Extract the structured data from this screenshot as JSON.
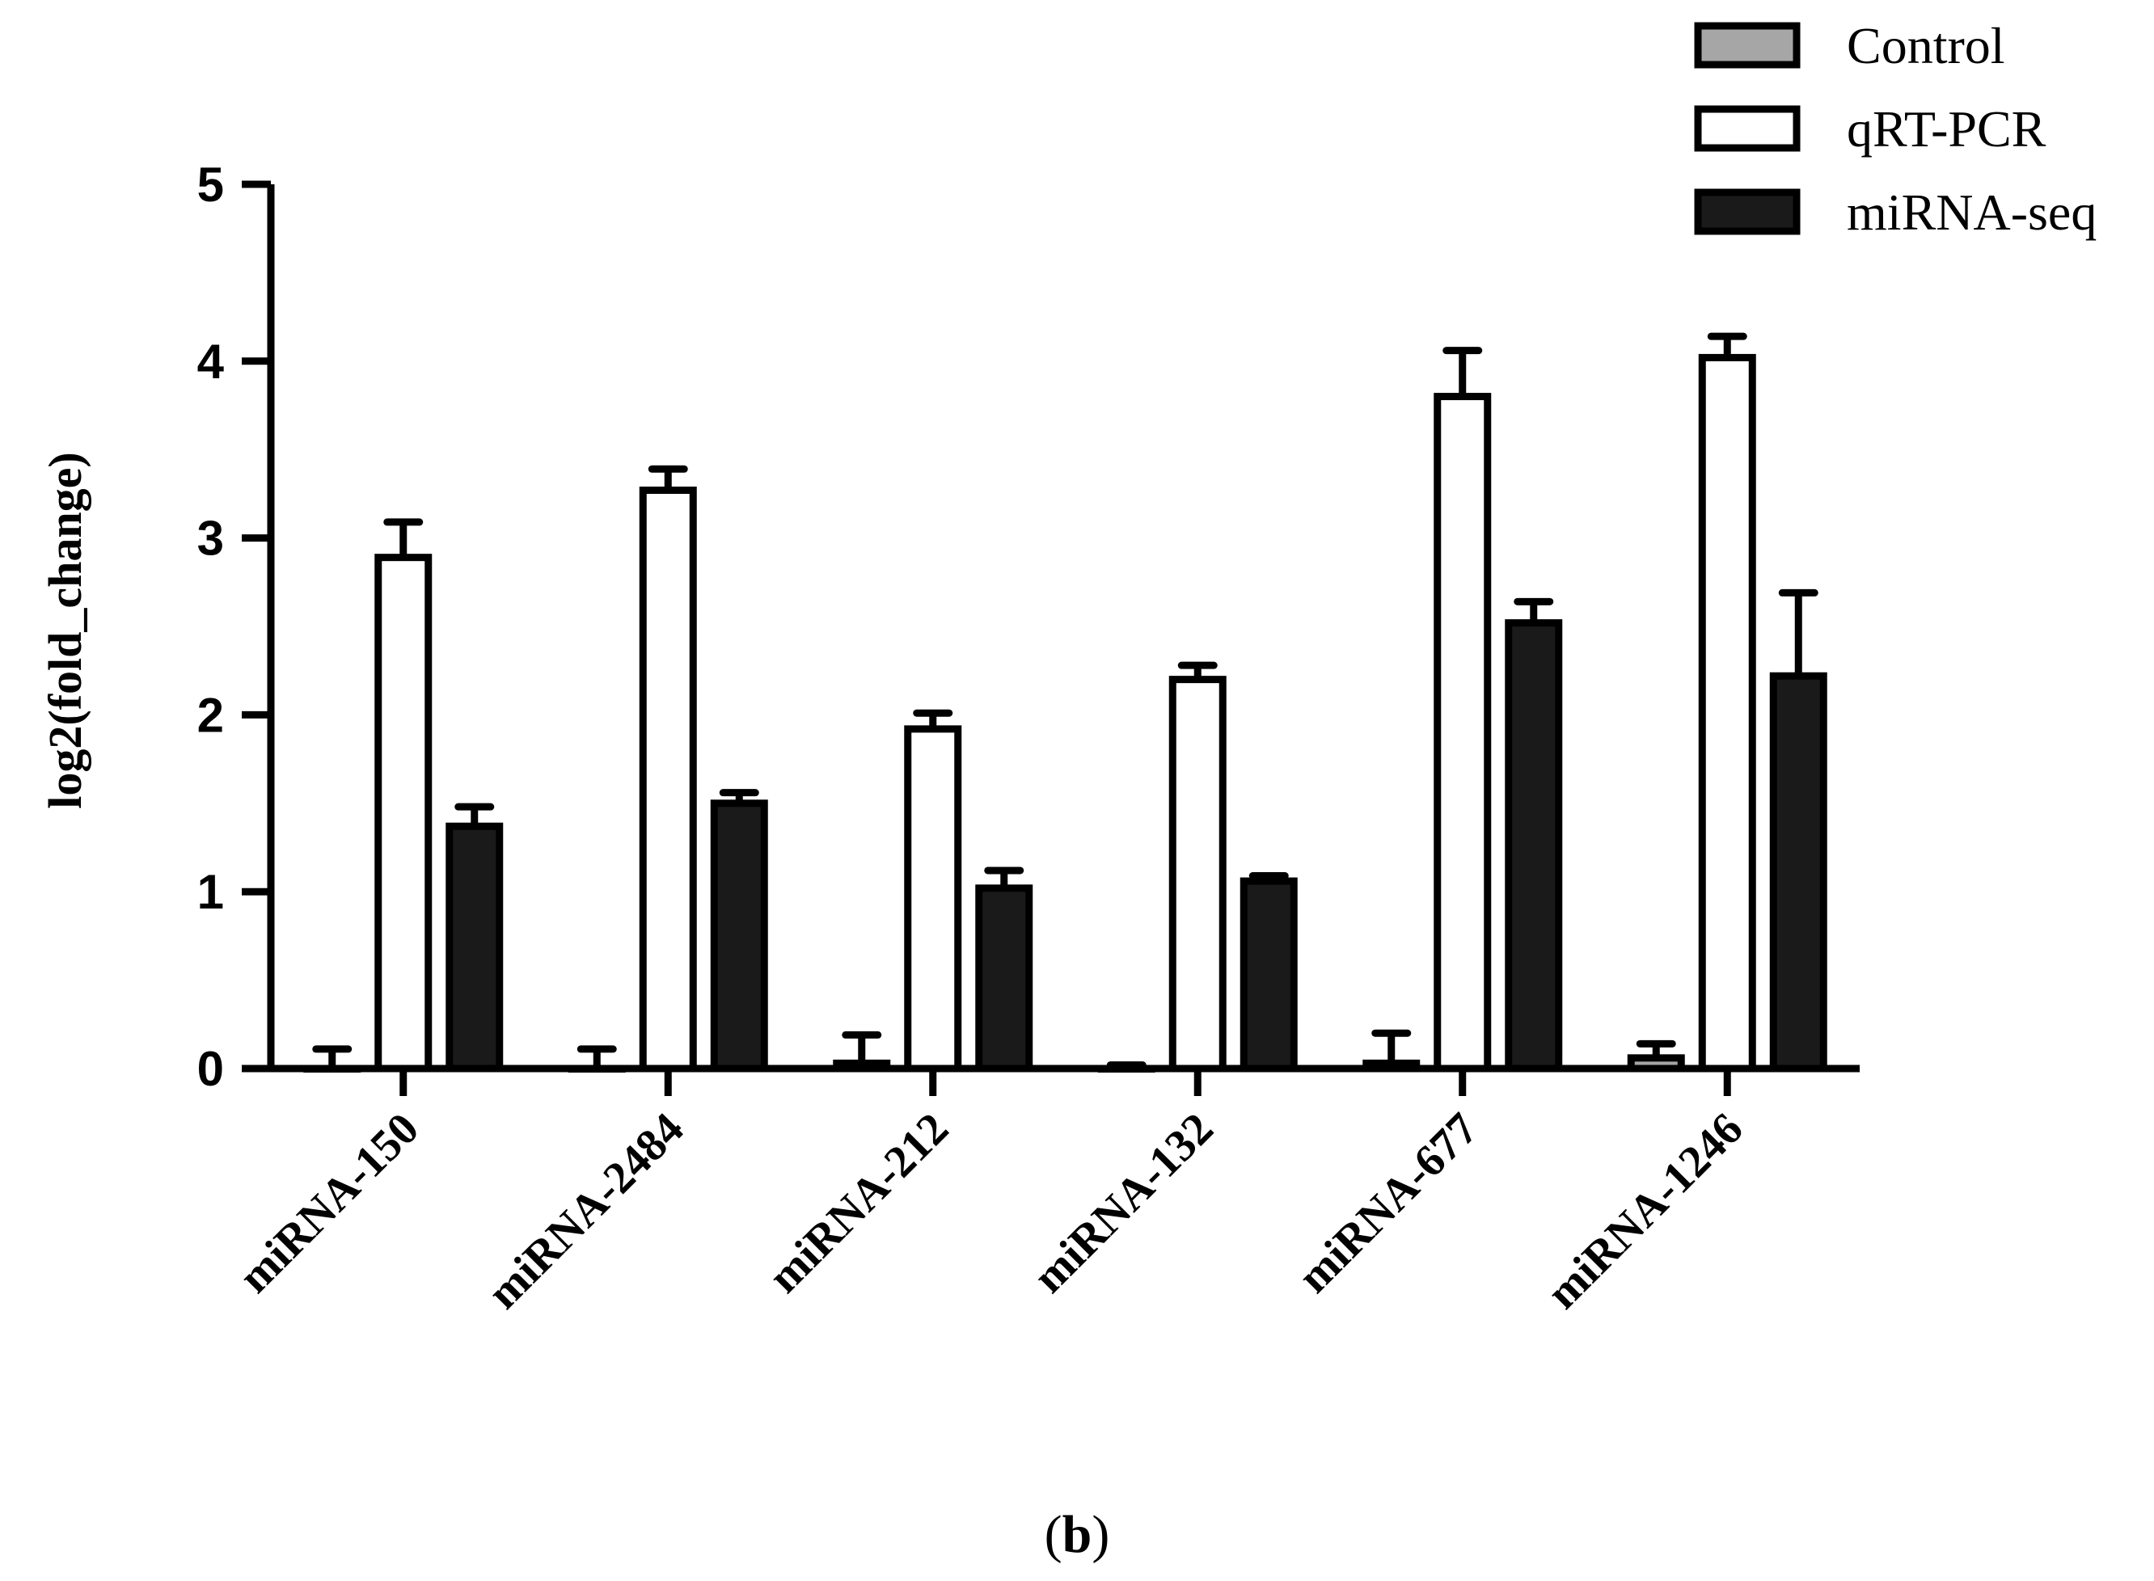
{
  "chart_data": {
    "type": "bar",
    "title": "",
    "xlabel": "",
    "ylabel": "log2(fold_change)",
    "ylim": [
      0,
      5
    ],
    "yticks": [
      0,
      1,
      2,
      3,
      4,
      5
    ],
    "grid": false,
    "legend_position": "top-right",
    "categories": [
      "miRNA-150",
      "miRNA-2484",
      "miRNA-212",
      "miRNA-132",
      "miRNA-677",
      "miRNA-1246"
    ],
    "series": [
      {
        "name": "Control",
        "fill": "#a6a6a6",
        "values": [
          0.0,
          0.0,
          0.03,
          0.0,
          0.03,
          0.06
        ],
        "errors": [
          0.11,
          0.11,
          0.16,
          0.02,
          0.17,
          0.08
        ]
      },
      {
        "name": "qRT-PCR",
        "fill": "#ffffff",
        "values": [
          2.89,
          3.27,
          1.92,
          2.2,
          3.8,
          4.02
        ],
        "errors": [
          0.2,
          0.12,
          0.09,
          0.08,
          0.26,
          0.12
        ]
      },
      {
        "name": "miRNA-seq",
        "fill": "#1a1a1a",
        "values": [
          1.37,
          1.5,
          1.02,
          1.06,
          2.52,
          2.22
        ],
        "errors": [
          0.11,
          0.06,
          0.1,
          0.03,
          0.12,
          0.47
        ]
      }
    ]
  },
  "panel_label": {
    "open": "(",
    "letter": "b",
    "close": ")"
  }
}
